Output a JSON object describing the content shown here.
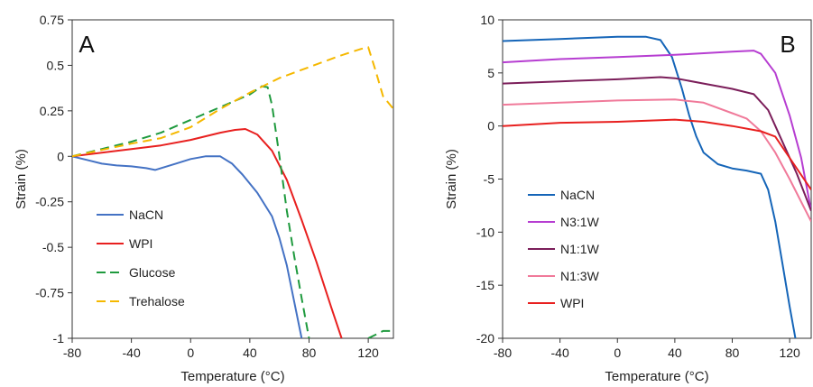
{
  "chart_data": [
    {
      "type": "line",
      "panel_label": "A",
      "xlabel": "Temperature (°C)",
      "ylabel": "Strain (%)",
      "xlim": [
        -80,
        137
      ],
      "ylim": [
        -1,
        0.75
      ],
      "xticks": [
        -80,
        -40,
        0,
        40,
        80,
        120
      ],
      "yticks": [
        0.75,
        0.5,
        0.25,
        0,
        -0.25,
        -0.5,
        -0.75,
        -1
      ],
      "ytick_labels": [
        "0.75",
        "0.5",
        "0.25",
        "0",
        "-0.25",
        "-0.5",
        "-0.75",
        "-1"
      ],
      "legend_position": "bottom-left",
      "series": [
        {
          "name": "NaCN",
          "color": "#4472C4",
          "dash": "solid",
          "x": [
            -80,
            -70,
            -60,
            -50,
            -40,
            -30,
            -24,
            -20,
            -10,
            0,
            10,
            20,
            28,
            35,
            45,
            55,
            60,
            65,
            70,
            75
          ],
          "y": [
            0,
            -0.02,
            -0.04,
            -0.05,
            -0.055,
            -0.065,
            -0.075,
            -0.065,
            -0.04,
            -0.015,
            0,
            0,
            -0.04,
            -0.1,
            -0.2,
            -0.33,
            -0.45,
            -0.6,
            -0.8,
            -1.0
          ]
        },
        {
          "name": "WPI",
          "color": "#E8201F",
          "dash": "solid",
          "x": [
            -80,
            -60,
            -40,
            -20,
            0,
            20,
            30,
            37,
            45,
            55,
            65,
            75,
            85,
            95,
            102
          ],
          "y": [
            0,
            0.02,
            0.04,
            0.06,
            0.09,
            0.13,
            0.145,
            0.15,
            0.12,
            0.03,
            -0.13,
            -0.35,
            -0.58,
            -0.83,
            -1.0
          ]
        },
        {
          "name": "Glucose",
          "color": "#1F9A3E",
          "dash": "dashed",
          "x": [
            -80,
            -60,
            -40,
            -20,
            0,
            20,
            40,
            48,
            52,
            55,
            60,
            65,
            70,
            75,
            80
          ],
          "y": [
            0,
            0.04,
            0.08,
            0.13,
            0.2,
            0.27,
            0.34,
            0.385,
            0.38,
            0.28,
            0.0,
            -0.3,
            -0.55,
            -0.78,
            -1.0
          ],
          "x2": [
            120,
            125,
            130,
            137
          ],
          "y2": [
            -1.0,
            -0.98,
            -0.96,
            -0.96
          ]
        },
        {
          "name": "Trehalose",
          "color": "#F5B800",
          "dash": "dashed",
          "x": [
            -80,
            -60,
            -40,
            -20,
            0,
            20,
            40,
            60,
            80,
            100,
            115,
            120,
            125,
            130,
            137
          ],
          "y": [
            0,
            0.035,
            0.07,
            0.1,
            0.16,
            0.26,
            0.35,
            0.43,
            0.49,
            0.55,
            0.59,
            0.6,
            0.47,
            0.33,
            0.26
          ]
        }
      ]
    },
    {
      "type": "line",
      "panel_label": "B",
      "xlabel": "Temperature (°C)",
      "ylabel": "Strain (%)",
      "xlim": [
        -80,
        135
      ],
      "ylim": [
        -20,
        10
      ],
      "xticks": [
        -80,
        -40,
        0,
        40,
        80,
        120
      ],
      "yticks": [
        10,
        5,
        0,
        -5,
        -10,
        -15,
        -20
      ],
      "ytick_labels": [
        "10",
        "5",
        "0",
        "-5",
        "-10",
        "-15",
        "-20"
      ],
      "legend_position": "bottom-left",
      "series": [
        {
          "name": "NaCN",
          "color": "#1565B8",
          "dash": "solid",
          "x": [
            -80,
            -40,
            0,
            20,
            30,
            38,
            45,
            50,
            55,
            60,
            70,
            80,
            90,
            100,
            105,
            110,
            115,
            120,
            124
          ],
          "y": [
            8,
            8.2,
            8.4,
            8.4,
            8.1,
            6.5,
            3.5,
            1.0,
            -1.0,
            -2.5,
            -3.6,
            -4.0,
            -4.2,
            -4.5,
            -6,
            -9,
            -13,
            -17,
            -20
          ]
        },
        {
          "name": "N3:1W",
          "color": "#B63DD1",
          "dash": "solid",
          "x": [
            -80,
            -40,
            0,
            40,
            80,
            95,
            100,
            110,
            120,
            128,
            135
          ],
          "y": [
            6,
            6.3,
            6.5,
            6.7,
            7.0,
            7.1,
            6.8,
            5,
            1,
            -3,
            -8
          ]
        },
        {
          "name": "N1:1W",
          "color": "#7B1E5A",
          "dash": "solid",
          "x": [
            -80,
            -40,
            0,
            30,
            40,
            60,
            80,
            95,
            105,
            115,
            125,
            135
          ],
          "y": [
            4,
            4.2,
            4.4,
            4.6,
            4.5,
            4.0,
            3.5,
            3.0,
            1.5,
            -1.5,
            -4.5,
            -8
          ]
        },
        {
          "name": "N1:3W",
          "color": "#F07A9A",
          "dash": "solid",
          "x": [
            -80,
            -40,
            0,
            40,
            60,
            80,
            90,
            100,
            110,
            120,
            135
          ],
          "y": [
            2,
            2.2,
            2.4,
            2.5,
            2.2,
            1.2,
            0.7,
            -0.5,
            -2.5,
            -5,
            -9
          ]
        },
        {
          "name": "WPI",
          "color": "#E8201F",
          "dash": "solid",
          "x": [
            -80,
            -40,
            0,
            40,
            60,
            80,
            100,
            110,
            120,
            130,
            135
          ],
          "y": [
            0,
            0.3,
            0.4,
            0.6,
            0.4,
            0,
            -0.5,
            -1.0,
            -3,
            -5,
            -6
          ]
        }
      ]
    }
  ]
}
